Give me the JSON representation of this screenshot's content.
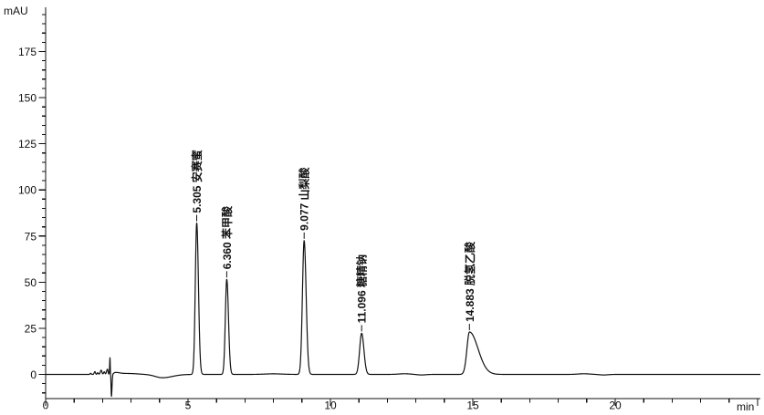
{
  "window": {
    "background": "#ffffff",
    "foreground": "#111111"
  },
  "chart_data": {
    "type": "line",
    "chart_kind": "HPLC chromatogram",
    "title": "",
    "grid": false,
    "legend": false,
    "x_axis": {
      "label": "min",
      "min": 0,
      "max": 25.1,
      "major_ticks": [
        0,
        5,
        10,
        15,
        20
      ],
      "unlabeled_major_ticks": [
        25
      ],
      "minor_tick_interval": 1
    },
    "y_axis": {
      "label": "mAU",
      "min": -13,
      "max": 199,
      "major_ticks": [
        0,
        25,
        50,
        75,
        100,
        125,
        150,
        175
      ],
      "minor_tick_interval": 5,
      "minor_min": -10,
      "minor_max": 195
    },
    "series": [
      {
        "name": "detector-signal",
        "color": "#111111"
      }
    ],
    "peaks": [
      {
        "time_label": "5.305",
        "rt_min": 5.305,
        "compound": "安赛蜜",
        "height_mAU": 82.0,
        "sigma_left_min": 0.05,
        "sigma_right_min": 0.06
      },
      {
        "time_label": "6.360",
        "rt_min": 6.36,
        "compound": "苯甲酸",
        "height_mAU": 51.5,
        "sigma_left_min": 0.05,
        "sigma_right_min": 0.06
      },
      {
        "time_label": "9.077",
        "rt_min": 9.077,
        "compound": "山梨酸",
        "height_mAU": 72.5,
        "sigma_left_min": 0.06,
        "sigma_right_min": 0.07
      },
      {
        "time_label": "11.096",
        "rt_min": 11.096,
        "compound": "糖精钠",
        "height_mAU": 22.3,
        "sigma_left_min": 0.07,
        "sigma_right_min": 0.08
      },
      {
        "time_label": "14.883",
        "rt_min": 14.883,
        "compound": "脱氢乙酸",
        "height_mAU": 23.0,
        "sigma_left_min": 0.09,
        "sigma_right_min": 0.3
      }
    ],
    "baseline_features": [
      {
        "t": 1.58,
        "h": 0.6,
        "sl": 0.02,
        "sr": 0.02
      },
      {
        "t": 1.73,
        "h": 1.5,
        "sl": 0.025,
        "sr": 0.02
      },
      {
        "t": 1.83,
        "h": 0.9,
        "sl": 0.02,
        "sr": 0.02
      },
      {
        "t": 1.95,
        "h": 2.3,
        "sl": 0.03,
        "sr": 0.025
      },
      {
        "t": 2.06,
        "h": 1.4,
        "sl": 0.025,
        "sr": 0.02
      },
      {
        "t": 2.17,
        "h": 2.8,
        "sl": 0.03,
        "sr": 0.02
      },
      {
        "t": 2.26,
        "h": 9.0,
        "sl": 0.012,
        "sr": 0.008
      },
      {
        "t": 2.31,
        "h": -12.0,
        "sl": 0.012,
        "sr": 0.02
      },
      {
        "t": 2.45,
        "h": 0.9,
        "sl": 0.06,
        "sr": 0.15
      },
      {
        "t": 2.9,
        "h": 0.5,
        "sl": 0.3,
        "sr": 0.3
      },
      {
        "t": 4.1,
        "h": -1.8,
        "sl": 0.25,
        "sr": 0.35
      },
      {
        "t": 8.0,
        "h": 0.3,
        "sl": 0.3,
        "sr": 0.3
      },
      {
        "t": 12.6,
        "h": 0.35,
        "sl": 0.2,
        "sr": 0.2
      },
      {
        "t": 13.2,
        "h": -0.3,
        "sl": 0.15,
        "sr": 0.15
      },
      {
        "t": 18.9,
        "h": 0.35,
        "sl": 0.2,
        "sr": 0.2
      },
      {
        "t": 19.6,
        "h": -0.3,
        "sl": 0.15,
        "sr": 0.15
      }
    ]
  }
}
